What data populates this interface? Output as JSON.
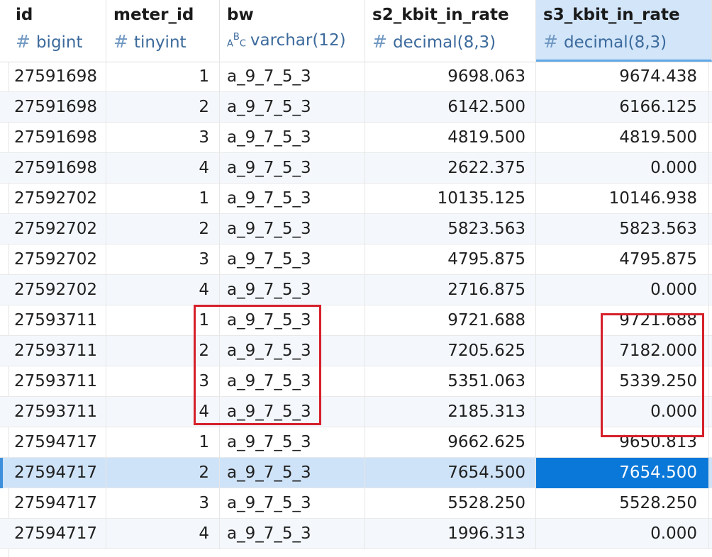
{
  "columns": [
    {
      "name": "id",
      "type": "bigint",
      "type_icon": "hash-icon"
    },
    {
      "name": "meter_id",
      "type": "tinyint",
      "type_icon": "hash-icon"
    },
    {
      "name": "bw",
      "type": "varchar(12)",
      "type_icon": "abc-text-icon"
    },
    {
      "name": "s2_kbit_in_rate",
      "type": "decimal(8,3)",
      "type_icon": "hash-icon"
    },
    {
      "name": "s3_kbit_in_rate",
      "type": "decimal(8,3)",
      "type_icon": "hash-icon"
    }
  ],
  "active_column": "s3_kbit_in_rate",
  "rows": [
    {
      "id": "27591698",
      "meter_id": "1",
      "bw": "a_9_7_5_3",
      "s2": "9698.063",
      "s3": "9674.438"
    },
    {
      "id": "27591698",
      "meter_id": "2",
      "bw": "a_9_7_5_3",
      "s2": "6142.500",
      "s3": "6166.125"
    },
    {
      "id": "27591698",
      "meter_id": "3",
      "bw": "a_9_7_5_3",
      "s2": "4819.500",
      "s3": "4819.500"
    },
    {
      "id": "27591698",
      "meter_id": "4",
      "bw": "a_9_7_5_3",
      "s2": "2622.375",
      "s3": "0.000"
    },
    {
      "id": "27592702",
      "meter_id": "1",
      "bw": "a_9_7_5_3",
      "s2": "10135.125",
      "s3": "10146.938"
    },
    {
      "id": "27592702",
      "meter_id": "2",
      "bw": "a_9_7_5_3",
      "s2": "5823.563",
      "s3": "5823.563"
    },
    {
      "id": "27592702",
      "meter_id": "3",
      "bw": "a_9_7_5_3",
      "s2": "4795.875",
      "s3": "4795.875"
    },
    {
      "id": "27592702",
      "meter_id": "4",
      "bw": "a_9_7_5_3",
      "s2": "2716.875",
      "s3": "0.000"
    },
    {
      "id": "27593711",
      "meter_id": "1",
      "bw": "a_9_7_5_3",
      "s2": "9721.688",
      "s3": "9721.688"
    },
    {
      "id": "27593711",
      "meter_id": "2",
      "bw": "a_9_7_5_3",
      "s2": "7205.625",
      "s3": "7182.000"
    },
    {
      "id": "27593711",
      "meter_id": "3",
      "bw": "a_9_7_5_3",
      "s2": "5351.063",
      "s3": "5339.250"
    },
    {
      "id": "27593711",
      "meter_id": "4",
      "bw": "a_9_7_5_3",
      "s2": "2185.313",
      "s3": "0.000"
    },
    {
      "id": "27594717",
      "meter_id": "1",
      "bw": "a_9_7_5_3",
      "s2": "9662.625",
      "s3": "9650.813"
    },
    {
      "id": "27594717",
      "meter_id": "2",
      "bw": "a_9_7_5_3",
      "s2": "7654.500",
      "s3": "7654.500"
    },
    {
      "id": "27594717",
      "meter_id": "3",
      "bw": "a_9_7_5_3",
      "s2": "5528.250",
      "s3": "5528.250"
    },
    {
      "id": "27594717",
      "meter_id": "4",
      "bw": "a_9_7_5_3",
      "s2": "1996.313",
      "s3": "0.000"
    }
  ],
  "selected_row_index": 13,
  "focused_cell_column": "s3",
  "colors": {
    "annotation": "#d6202a",
    "selected_row": "#cfe3f8",
    "focused_cell": "#0a78d8",
    "header_active": "#d2e5f9"
  }
}
